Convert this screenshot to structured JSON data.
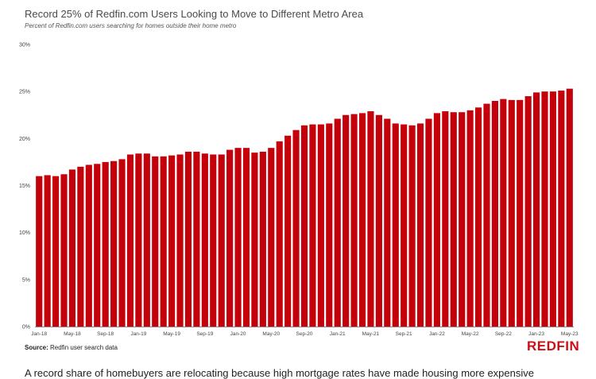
{
  "logo": "REDFIN",
  "source_label": "Source:",
  "source_text": "Redfin user search data",
  "bottom_text": "A record share of homebuyers are relocating because high mortgage rates have made housing more expensive",
  "colors": {
    "bar": "#c4000b",
    "axis": "#888888",
    "logo": "#cc0f15"
  },
  "chart_data": {
    "type": "bar",
    "title": "Record 25% of Redfin.com Users Looking to Move to Different Metro Area",
    "subtitle": "Percent of Redfin.com users searching for homes outside their home metro",
    "xlabel": "",
    "ylabel": "",
    "ylim": [
      0,
      30
    ],
    "yticks": [
      "0%",
      "5%",
      "10%",
      "15%",
      "20%",
      "25%",
      "30%"
    ],
    "y_tick_values": [
      0,
      5,
      10,
      15,
      20,
      25,
      30
    ],
    "x_tick_labels": [
      "Jan-18",
      "May-18",
      "Sep-18",
      "Jan-19",
      "May-19",
      "Sep-19",
      "Jan-20",
      "May-20",
      "Sep-20",
      "Jan-21",
      "May-21",
      "Sep-21",
      "Jan-22",
      "May-22",
      "Sep-22",
      "Jan-23",
      "May-23"
    ],
    "grid": false,
    "legend": "none",
    "categories": [
      "Jan-18",
      "Feb-18",
      "Mar-18",
      "Apr-18",
      "May-18",
      "Jun-18",
      "Jul-18",
      "Aug-18",
      "Sep-18",
      "Oct-18",
      "Nov-18",
      "Dec-18",
      "Jan-19",
      "Feb-19",
      "Mar-19",
      "Apr-19",
      "May-19",
      "Jun-19",
      "Jul-19",
      "Aug-19",
      "Sep-19",
      "Oct-19",
      "Nov-19",
      "Dec-19",
      "Jan-20",
      "Feb-20",
      "Mar-20",
      "Apr-20",
      "May-20",
      "Jun-20",
      "Jul-20",
      "Aug-20",
      "Sep-20",
      "Oct-20",
      "Nov-20",
      "Dec-20",
      "Jan-21",
      "Feb-21",
      "Mar-21",
      "Apr-21",
      "May-21",
      "Jun-21",
      "Jul-21",
      "Aug-21",
      "Sep-21",
      "Oct-21",
      "Nov-21",
      "Dec-21",
      "Jan-22",
      "Feb-22",
      "Mar-22",
      "Apr-22",
      "May-22",
      "Jun-22",
      "Jul-22",
      "Aug-22",
      "Sep-22",
      "Oct-22",
      "Nov-22",
      "Dec-22",
      "Jan-23",
      "Feb-23",
      "Mar-23",
      "Apr-23",
      "May-23"
    ],
    "values": [
      16.0,
      16.1,
      16.0,
      16.2,
      16.7,
      17.0,
      17.2,
      17.3,
      17.5,
      17.6,
      17.8,
      18.3,
      18.4,
      18.4,
      18.1,
      18.1,
      18.2,
      18.3,
      18.6,
      18.6,
      18.4,
      18.3,
      18.3,
      18.8,
      19.0,
      19.0,
      18.5,
      18.6,
      19.0,
      19.7,
      20.3,
      20.9,
      21.4,
      21.5,
      21.5,
      21.6,
      22.1,
      22.5,
      22.6,
      22.7,
      22.9,
      22.5,
      22.1,
      21.6,
      21.5,
      21.4,
      21.6,
      22.1,
      22.7,
      22.9,
      22.8,
      22.8,
      23.0,
      23.3,
      23.7,
      24.0,
      24.2,
      24.1,
      24.1,
      24.5,
      24.9,
      25.0,
      25.0,
      25.1,
      25.3
    ]
  }
}
